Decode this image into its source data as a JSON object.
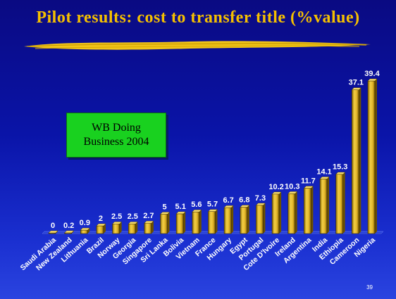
{
  "slide": {
    "title": "Pilot results:  cost to transfer title (%value)",
    "callout_line1": "WB   Doing",
    "callout_line2": "Business 2004",
    "page_number": "39"
  },
  "colors": {
    "title": "#f5c000",
    "bar": "#e8c030",
    "label": "#ffffff",
    "callout_bg": "#19d11f"
  },
  "chart_data": {
    "type": "bar",
    "title": "Pilot results:  cost to transfer title (%value)",
    "xlabel": "",
    "ylabel": "",
    "ylim": [
      0,
      40
    ],
    "grid": false,
    "categories": [
      "Saudi Arabia",
      "New Zealand",
      "Lithuania",
      "Brazil",
      "Norway",
      "Georgia",
      "Singapore",
      "Sri Lanka",
      "Bolivia",
      "Vietnam",
      "France",
      "Hungary",
      "Egypt",
      "Portugal",
      "Cote D'Ivoire",
      "Ireland",
      "Argentina",
      "India",
      "Ethiopia",
      "Cameroon",
      "Nigeria"
    ],
    "values": [
      0,
      0.2,
      0.9,
      2,
      2.5,
      2.5,
      2.7,
      5,
      5.1,
      5.6,
      5.7,
      6.7,
      6.8,
      7.3,
      10.2,
      10.3,
      11.7,
      14.1,
      15.3,
      37.1,
      39.4
    ],
    "value_labels": [
      "0",
      "0.2",
      "0.9",
      "2",
      "2.5",
      "2.5",
      "2.7",
      "5",
      "5.1",
      "5.6",
      "5.7",
      "6.7",
      "6.8",
      "7.3",
      "10.2",
      "10.3",
      "11.7",
      "14.1",
      "15.3",
      "37.1",
      "39.4"
    ]
  }
}
